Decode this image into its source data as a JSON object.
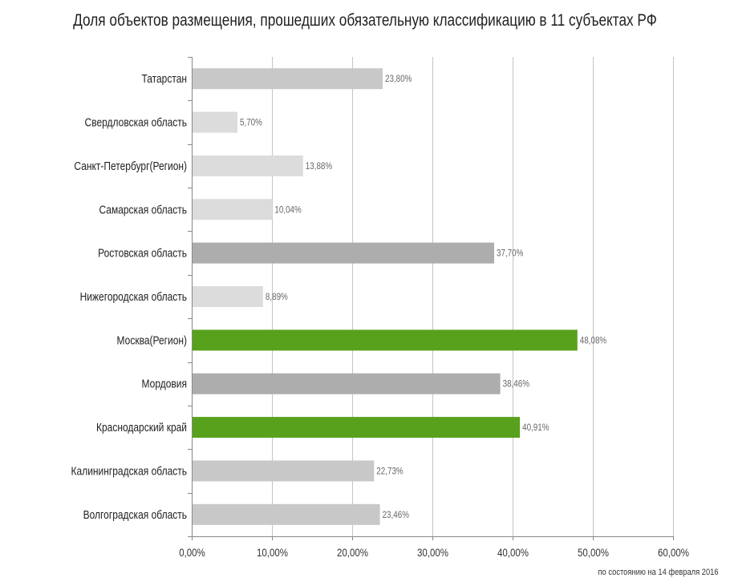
{
  "title": "Доля объектов размещения, прошедших обязательную классификацию в 11 субъектах РФ",
  "footnote": "по состоянию на 14 февраля 2016",
  "chart_data": {
    "type": "bar",
    "orientation": "horizontal",
    "title": "Доля объектов размещения, прошедших обязательную классификацию в 11 субъектах РФ",
    "xlim": [
      0,
      60
    ],
    "x_tick_labels": [
      "0,00%",
      "10,00%",
      "20,00%",
      "30,00%",
      "40,00%",
      "50,00%",
      "60,00%"
    ],
    "x_ticks": [
      0,
      10,
      20,
      30,
      40,
      50,
      60
    ],
    "grid": "vertical",
    "categories": [
      "Татарстан",
      "Свердловская область",
      "Санкт-Петербург(Регион)",
      "Самарская область",
      "Ростовская область",
      "Нижегородская область",
      "Москва(Регион)",
      "Мордовия",
      "Краснодарский край",
      "Калининградская область",
      "Волгоградская область"
    ],
    "values": [
      23.8,
      5.7,
      13.88,
      10.04,
      37.7,
      8.89,
      48.08,
      38.46,
      40.91,
      22.73,
      23.46
    ],
    "value_labels": [
      "23,80%",
      "5,70%",
      "13,88%",
      "10,04%",
      "37,70%",
      "8,89%",
      "48,08%",
      "38,46%",
      "40,91%",
      "22,73%",
      "23,46%"
    ],
    "bar_colors": [
      "#c8c8c8",
      "#dcdcdc",
      "#dcdcdc",
      "#dcdcdc",
      "#adadad",
      "#dcdcdc",
      "#58a11c",
      "#adadad",
      "#58a11c",
      "#c8c8c8",
      "#c8c8c8"
    ]
  }
}
